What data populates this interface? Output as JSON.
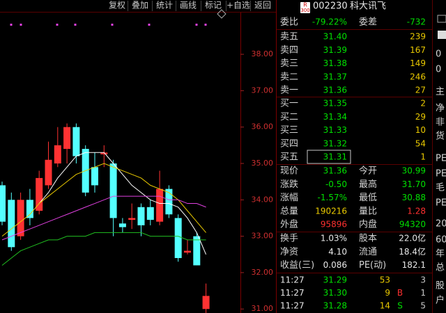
{
  "toolbar": [
    "复权",
    "叠加",
    "统计",
    "画线",
    "标记",
    "+自选",
    "返回"
  ],
  "header": {
    "badge_top": "R",
    "badge_bottom": "300",
    "code": "002230",
    "name": "科大讯飞"
  },
  "chart": {
    "ylim": [
      30.89,
      39.11
    ],
    "yticks": [
      {
        "value": 38,
        "label": "38.00"
      },
      {
        "value": 37,
        "label": "37.00"
      },
      {
        "value": 36,
        "label": "36.00"
      },
      {
        "value": 35,
        "label": "35.00"
      },
      {
        "value": 34,
        "label": "34.00"
      },
      {
        "value": 33,
        "label": "33.00"
      },
      {
        "value": 32,
        "label": "32.00"
      },
      {
        "value": 31,
        "label": "31.00"
      }
    ],
    "candles": [
      {
        "open": 34.4,
        "close": 33.4,
        "high": 34.5,
        "low": 33.3
      },
      {
        "open": 34.0,
        "close": 32.7,
        "high": 34.2,
        "low": 32.6
      },
      {
        "open": 33.0,
        "close": 34.0,
        "high": 34.2,
        "low": 32.9
      },
      {
        "open": 34.0,
        "close": 33.5,
        "high": 34.3,
        "low": 33.3
      },
      {
        "open": 33.7,
        "close": 34.6,
        "high": 34.8,
        "low": 33.6
      },
      {
        "open": 34.4,
        "close": 35.1,
        "high": 35.6,
        "low": 34.3
      },
      {
        "open": 35.0,
        "close": 35.5,
        "high": 36.0,
        "low": 34.9
      },
      {
        "open": 35.4,
        "close": 36.0,
        "high": 36.1,
        "low": 35.0
      },
      {
        "open": 36.0,
        "close": 35.2,
        "high": 36.1,
        "low": 35.0
      },
      {
        "open": 35.4,
        "close": 34.2,
        "high": 35.5,
        "low": 34.1
      },
      {
        "open": 34.9,
        "close": 34.4,
        "high": 35.3,
        "low": 34.2
      },
      {
        "open": 35.25,
        "close": 35.3,
        "high": 35.5,
        "low": 34.9
      },
      {
        "open": 35.0,
        "close": 33.5,
        "high": 35.1,
        "low": 33.0
      },
      {
        "open": 33.35,
        "close": 33.25,
        "high": 33.5,
        "low": 33.1
      },
      {
        "open": 33.45,
        "close": 33.5,
        "high": 33.9,
        "low": 33.2
      },
      {
        "open": 33.8,
        "close": 33.3,
        "high": 33.9,
        "low": 33.0
      },
      {
        "open": 33.8,
        "close": 33.45,
        "high": 34.0,
        "low": 33.3
      },
      {
        "open": 33.4,
        "close": 34.3,
        "high": 34.8,
        "low": 33.3
      },
      {
        "open": 34.3,
        "close": 33.6,
        "high": 34.4,
        "low": 33.5
      },
      {
        "open": 33.5,
        "close": 32.4,
        "high": 33.6,
        "low": 32.3
      },
      {
        "open": 32.55,
        "close": 32.6,
        "high": 32.9,
        "low": 32.5
      },
      {
        "open": 33.0,
        "close": 32.2,
        "high": 33.1,
        "low": 32.2
      },
      {
        "open": 31.0,
        "close": 31.36,
        "high": 31.7,
        "low": 30.88
      }
    ],
    "up_color": "#ff3232",
    "down_color": "#54ffff",
    "averages": [
      {
        "color": "#ffffff",
        "values": [
          null,
          null,
          null,
          null,
          33.9,
          34.2,
          34.6,
          34.9,
          35.2,
          35.3,
          35.3,
          35.3,
          35.0,
          34.7,
          34.4,
          34.2,
          34.0,
          33.9,
          33.9,
          33.8,
          33.5,
          33.1,
          32.5
        ]
      },
      {
        "color": "#e8c800",
        "values": [
          33.0,
          33.2,
          33.4,
          33.6,
          33.9,
          34.1,
          34.3,
          34.5,
          34.7,
          34.8,
          34.9,
          35.0,
          34.9,
          34.8,
          34.7,
          34.6,
          34.4,
          34.3,
          34.2,
          34.0,
          33.7,
          33.4,
          33.1
        ]
      },
      {
        "color": "#e040e0",
        "values": [
          32.9,
          33.0,
          33.1,
          33.2,
          33.3,
          33.4,
          33.5,
          33.6,
          33.7,
          33.8,
          33.9,
          34.0,
          34.1,
          34.1,
          34.1,
          34.1,
          34.1,
          34.1,
          34.0,
          34.0,
          33.9,
          33.9,
          33.8
        ]
      },
      {
        "color": "#20c020",
        "values": [
          32.2,
          32.4,
          32.6,
          32.7,
          32.8,
          32.9,
          32.9,
          33.0,
          33.0,
          33.0,
          33.1,
          33.1,
          33.1,
          33.1,
          33.1,
          33.1,
          33.0,
          33.0,
          33.0,
          33.0,
          32.9,
          32.9,
          32.9
        ]
      }
    ]
  },
  "order_ratio": {
    "label": "委比",
    "value": "-79.22%",
    "label2": "委差",
    "value2": "-732"
  },
  "asks": [
    {
      "label": "卖五",
      "price": "31.40",
      "volume": "239"
    },
    {
      "label": "卖四",
      "price": "31.39",
      "volume": "167"
    },
    {
      "label": "卖三",
      "price": "31.38",
      "volume": "149"
    },
    {
      "label": "卖二",
      "price": "31.37",
      "volume": "246"
    },
    {
      "label": "卖一",
      "price": "31.36",
      "volume": "27"
    }
  ],
  "bids": [
    {
      "label": "买一",
      "price": "31.35",
      "volume": "2"
    },
    {
      "label": "买二",
      "price": "31.34",
      "volume": "29"
    },
    {
      "label": "买三",
      "price": "31.33",
      "volume": "10"
    },
    {
      "label": "买四",
      "price": "31.32",
      "volume": "54"
    },
    {
      "label": "买五",
      "price": "31.31",
      "volume": "1"
    }
  ],
  "quote": [
    [
      "现价",
      "31.36",
      "今开",
      "30.99"
    ],
    [
      "涨跌",
      "-0.50",
      "最高",
      "31.70"
    ],
    [
      "涨幅",
      "-1.57%",
      "最低",
      "30.88"
    ],
    [
      "总量",
      "190216",
      "量比",
      "1.28"
    ],
    [
      "外盘",
      "95896",
      "内盘",
      "94320"
    ]
  ],
  "fundamentals": [
    [
      "换手",
      "1.03%",
      "股本",
      "22.0亿"
    ],
    [
      "净资",
      "4.10",
      "流通",
      "18.4亿"
    ],
    [
      "收益(三)",
      "0.086",
      "PE(动)",
      "182.1"
    ]
  ],
  "trades": [
    {
      "time": "11:27",
      "price": "31.29",
      "volume": "53",
      "flag": null,
      "count": "3"
    },
    {
      "time": "11:27",
      "price": "31.30",
      "volume": "9",
      "flag": "B",
      "count": "1"
    },
    {
      "time": "11:27",
      "price": "31.28",
      "volume": "14",
      "flag": "S",
      "count": "5"
    }
  ],
  "side_panel": [
    "0",
    "0",
    "主",
    "净",
    "非",
    "货",
    "PE",
    "PE",
    "毛",
    "PE",
    "20",
    "60",
    "年",
    "总",
    "股",
    "户"
  ]
}
